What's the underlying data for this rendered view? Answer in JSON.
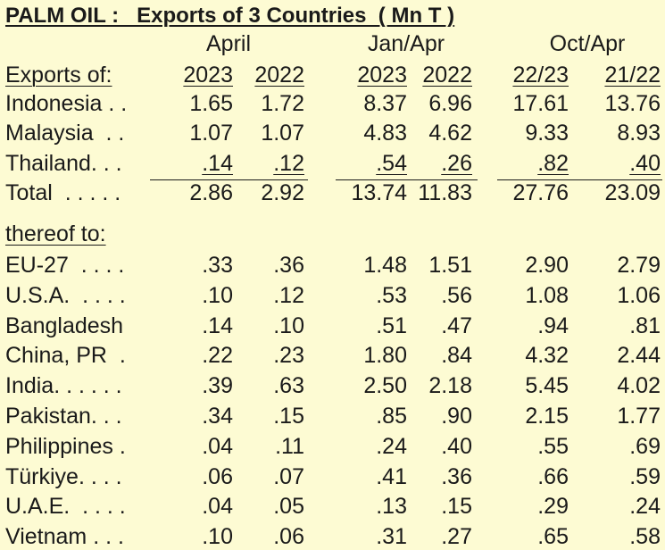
{
  "title": "PALM OIL :   Exports of 3 Countries  ( Mn T )",
  "periods": [
    "April",
    "Jan/Apr",
    "Oct/Apr"
  ],
  "header": {
    "label": "Exports of:",
    "columns": [
      "2023",
      "2022",
      "2023",
      "2022",
      "22/23",
      "21/22"
    ]
  },
  "exporters": [
    {
      "name": "Indonesia . .",
      "values": [
        "1.65",
        "1.72",
        "8.37",
        "6.96",
        "17.61",
        "13.76"
      ]
    },
    {
      "name": "Malaysia  . .",
      "values": [
        "1.07",
        "1.07",
        "4.83",
        "4.62",
        "9.33",
        "8.93"
      ]
    },
    {
      "name": "Thailand. . .",
      "values": [
        ".14",
        ".12",
        ".54",
        ".26",
        ".82",
        ".40"
      ]
    }
  ],
  "total": {
    "name": "Total  . . . . .",
    "values": [
      "2.86",
      "2.92",
      "13.74",
      "11.83",
      "27.76",
      "23.09"
    ]
  },
  "destinations_label": "thereof to:",
  "destinations": [
    {
      "name": "EU-27  . . . .",
      "values": [
        ".33",
        ".36",
        "1.48",
        "1.51",
        "2.90",
        "2.79"
      ]
    },
    {
      "name": "U.S.A.  . . . .",
      "values": [
        ".10",
        ".12",
        ".53",
        ".56",
        "1.08",
        "1.06"
      ]
    },
    {
      "name": "Bangladesh",
      "values": [
        ".14",
        ".10",
        ".51",
        ".47",
        ".94",
        ".81"
      ]
    },
    {
      "name": "China, PR  .",
      "values": [
        ".22",
        ".23",
        "1.80",
        ".84",
        "4.32",
        "2.44"
      ]
    },
    {
      "name": "India. . . . . .",
      "values": [
        ".39",
        ".63",
        "2.50",
        "2.18",
        "5.45",
        "4.02"
      ]
    },
    {
      "name": "Pakistan. . .",
      "values": [
        ".34",
        ".15",
        ".85",
        ".90",
        "2.15",
        "1.77"
      ]
    },
    {
      "name": "Philippines .",
      "values": [
        ".04",
        ".11",
        ".24",
        ".40",
        ".55",
        ".69"
      ]
    },
    {
      "name": "Türkiye. . . .",
      "values": [
        ".06",
        ".07",
        ".41",
        ".36",
        ".66",
        ".59"
      ]
    },
    {
      "name": "U.A.E.  . . . .",
      "values": [
        ".04",
        ".05",
        ".13",
        ".15",
        ".29",
        ".24"
      ]
    },
    {
      "name": "Vietnam . . .",
      "values": [
        ".10",
        ".06",
        ".31",
        ".27",
        ".65",
        ".58"
      ]
    }
  ]
}
